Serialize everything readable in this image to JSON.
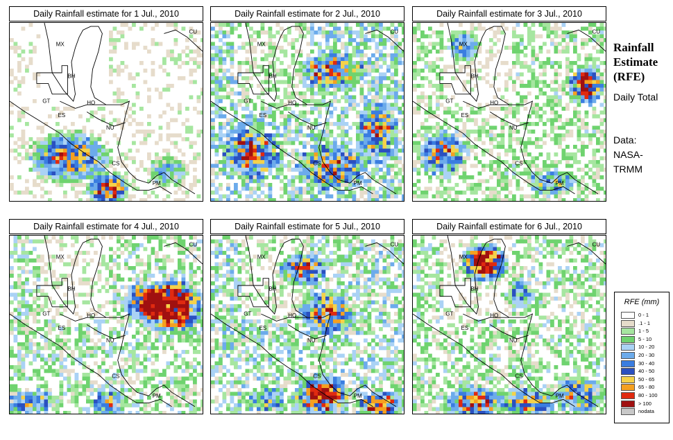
{
  "panels": [
    {
      "title": "Daily Rainfall estimate for  1 Jul., 2010",
      "seed": 11,
      "density": 0.3,
      "hot": [
        [
          30,
          74,
          24,
          16,
          0.7
        ],
        [
          50,
          92,
          12,
          10,
          0.9
        ],
        [
          80,
          82,
          12,
          10,
          0.4
        ]
      ]
    },
    {
      "title": "Daily Rainfall estimate for  2 Jul., 2010",
      "seed": 23,
      "density": 0.62,
      "hot": [
        [
          20,
          72,
          16,
          16,
          0.6
        ],
        [
          60,
          26,
          20,
          12,
          0.5
        ],
        [
          60,
          80,
          20,
          14,
          0.5
        ],
        [
          85,
          60,
          12,
          20,
          0.5
        ]
      ]
    },
    {
      "title": "Daily Rainfall estimate for  3 Jul., 2010",
      "seed": 37,
      "density": 0.46,
      "hot": [
        [
          88,
          34,
          10,
          12,
          0.8
        ],
        [
          14,
          72,
          14,
          14,
          0.6
        ],
        [
          25,
          12,
          10,
          10,
          0.5
        ],
        [
          70,
          88,
          14,
          8,
          0.4
        ]
      ]
    },
    {
      "title": "Daily Rainfall estimate for  4 Jul., 2010",
      "seed": 41,
      "density": 0.5,
      "hot": [
        [
          82,
          38,
          18,
          16,
          1.0
        ],
        [
          68,
          36,
          12,
          12,
          0.6
        ],
        [
          10,
          92,
          16,
          8,
          0.4
        ],
        [
          50,
          92,
          10,
          8,
          0.5
        ]
      ]
    },
    {
      "title": "Daily Rainfall estimate for  5 Jul., 2010",
      "seed": 53,
      "density": 0.58,
      "hot": [
        [
          46,
          18,
          14,
          10,
          0.7
        ],
        [
          58,
          42,
          16,
          14,
          0.6
        ],
        [
          56,
          88,
          16,
          12,
          0.8
        ],
        [
          86,
          94,
          12,
          8,
          0.8
        ],
        [
          28,
          90,
          10,
          8,
          0.4
        ]
      ]
    },
    {
      "title": "Daily Rainfall estimate for  6 Jul., 2010",
      "seed": 67,
      "density": 0.48,
      "hot": [
        [
          36,
          14,
          14,
          12,
          1.0
        ],
        [
          30,
          92,
          16,
          10,
          0.7
        ],
        [
          58,
          92,
          16,
          10,
          0.6
        ],
        [
          84,
          88,
          14,
          12,
          0.5
        ],
        [
          54,
          32,
          10,
          10,
          0.4
        ]
      ]
    }
  ],
  "map_labels": [
    "MX",
    "BH",
    "GT",
    "HO",
    "ES",
    "NU",
    "CS",
    "PM",
    "CU"
  ],
  "side": {
    "title": "Rainfall Estimate (RFE)",
    "daily_total": "Daily Total",
    "data_source": "Data: NASA- TRMM"
  },
  "legend": {
    "title": "RFE (mm)",
    "classes": [
      {
        "label": "0 - 1",
        "color": "#ffffff"
      },
      {
        "label": ".1 - 1",
        "color": "#e6dccb"
      },
      {
        "label": "1 - 5",
        "color": "#a6e6a0"
      },
      {
        "label": "5 - 10",
        "color": "#6fd36f"
      },
      {
        "label": "10 - 20",
        "color": "#aad2f5"
      },
      {
        "label": "20 - 30",
        "color": "#6cabeb"
      },
      {
        "label": "30 - 40",
        "color": "#3a7de0"
      },
      {
        "label": "40 - 50",
        "color": "#2a50c0"
      },
      {
        "label": "50 - 65",
        "color": "#f5d24a"
      },
      {
        "label": "65 - 80",
        "color": "#f5a020"
      },
      {
        "label": "80 - 100",
        "color": "#e02a10"
      },
      {
        "label": "> 100",
        "color": "#a01010"
      },
      {
        "label": "nodata",
        "color": "#c8c8c8"
      }
    ]
  }
}
